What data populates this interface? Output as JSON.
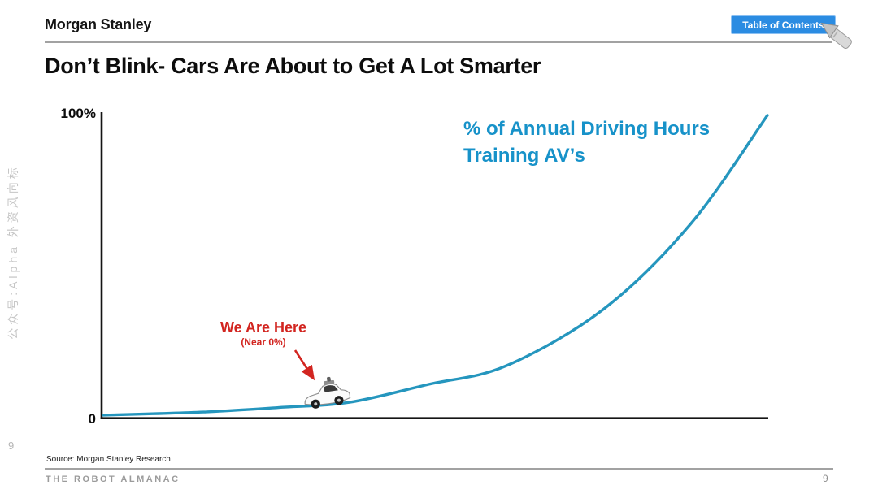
{
  "header": {
    "logo": "Morgan Stanley",
    "toc_button": "Table of Contents"
  },
  "title": "Don’t Blink- Cars Are About to Get A Lot Smarter",
  "watermark": "公众号:Alpha 外资风向标",
  "chart_data": {
    "type": "line",
    "title": "% of Annual Driving Hours Training AV’s",
    "label_line1": "% of Annual Driving Hours",
    "label_line2": "Training AV’s",
    "ylabel_top": "100%",
    "ylabel_bottom": "0",
    "ylim": [
      0,
      100
    ],
    "xlabel": "",
    "ylabel": "% of annual driving hours",
    "grid": false,
    "legend_position": "none",
    "line_color": "#2596be",
    "x": [
      0.0,
      0.151,
      0.273,
      0.371,
      0.49,
      0.607,
      0.754,
      0.885,
      1.0
    ],
    "values": [
      1.1,
      2.1,
      3.7,
      5.3,
      11.2,
      17.3,
      36.0,
      64.0,
      99.5
    ],
    "annotation": {
      "label": "We Are Here",
      "sub": "(Near 0%)",
      "color": "#d22520",
      "marker": "autonomous-car",
      "x": 0.33,
      "value": 4.5
    }
  },
  "footer": {
    "page_left": "9",
    "source": "Source: Morgan Stanley Research",
    "publication": "THE ROBOT ALMANAC",
    "page_right": "9"
  },
  "icons": {
    "cursor": "hand-cursor-icon"
  }
}
